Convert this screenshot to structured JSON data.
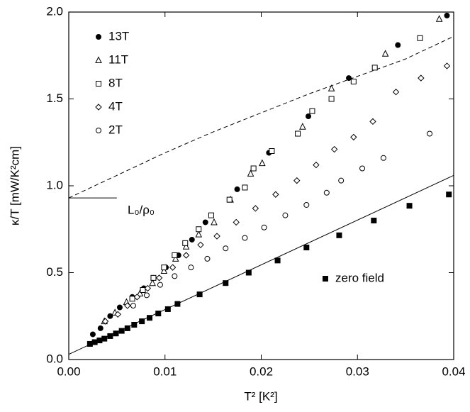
{
  "chart_data": {
    "type": "scatter",
    "xlabel": "T² [K²]",
    "ylabel": "κ/T [mW/K²cm]",
    "xlim": [
      0,
      0.04
    ],
    "ylim": [
      0,
      2.0
    ],
    "xticks": [
      {
        "value": 0,
        "label": "0.00"
      },
      0.01,
      0.02,
      0.03,
      0.04
    ],
    "yticks": [
      {
        "value": 0,
        "label": "0.0"
      },
      0.5,
      {
        "value": 1,
        "label": "1.0"
      },
      1.5,
      {
        "value": 2,
        "label": "2.0"
      }
    ],
    "series": [
      {
        "name": "13T",
        "color": "#000000",
        "marker": "circle-filled",
        "x": [
          0.0025,
          0.0033,
          0.0043,
          0.0053,
          0.0066,
          0.0078,
          0.0088,
          0.0101,
          0.0114,
          0.0128,
          0.0142,
          0.0175,
          0.0208,
          0.0249,
          0.0291,
          0.0342,
          0.0393
        ],
        "values": [
          0.145,
          0.18,
          0.25,
          0.3,
          0.36,
          0.41,
          0.47,
          0.53,
          0.6,
          0.69,
          0.79,
          0.98,
          1.19,
          1.4,
          1.62,
          1.81,
          1.98
        ]
      },
      {
        "name": "11T",
        "color": "#000000",
        "marker": "triangle-open",
        "x": [
          0.0037,
          0.0048,
          0.006,
          0.0074,
          0.0087,
          0.0099,
          0.0111,
          0.0122,
          0.0135,
          0.0151,
          0.0168,
          0.0189,
          0.0201,
          0.0243,
          0.0273,
          0.0329,
          0.0385
        ],
        "values": [
          0.22,
          0.27,
          0.33,
          0.38,
          0.44,
          0.51,
          0.58,
          0.65,
          0.72,
          0.79,
          0.92,
          1.07,
          1.13,
          1.34,
          1.56,
          1.76,
          1.96
        ]
      },
      {
        "name": "8T",
        "color": "#000000",
        "marker": "square-open",
        "x": [
          0.0066,
          0.0077,
          0.0088,
          0.0099,
          0.011,
          0.0121,
          0.0135,
          0.0148,
          0.0167,
          0.0183,
          0.0192,
          0.0211,
          0.0238,
          0.0253,
          0.0273,
          0.0296,
          0.0318,
          0.0365
        ],
        "values": [
          0.35,
          0.4,
          0.47,
          0.53,
          0.6,
          0.67,
          0.75,
          0.83,
          0.92,
          0.99,
          1.1,
          1.2,
          1.3,
          1.43,
          1.5,
          1.6,
          1.68,
          1.85
        ]
      },
      {
        "name": "4T",
        "color": "#000000",
        "marker": "diamond-open",
        "x": [
          0.0038,
          0.0051,
          0.0061,
          0.0071,
          0.0082,
          0.0094,
          0.0108,
          0.0122,
          0.0137,
          0.0154,
          0.0174,
          0.0194,
          0.0215,
          0.0237,
          0.0257,
          0.0276,
          0.0296,
          0.0316,
          0.034,
          0.0366,
          0.0393
        ],
        "values": [
          0.22,
          0.26,
          0.31,
          0.36,
          0.41,
          0.47,
          0.53,
          0.6,
          0.66,
          0.71,
          0.79,
          0.87,
          0.95,
          1.03,
          1.12,
          1.21,
          1.28,
          1.37,
          1.54,
          1.62,
          1.69
        ]
      },
      {
        "name": "2T",
        "color": "#000000",
        "marker": "circle-open",
        "x": [
          0.0067,
          0.0081,
          0.0095,
          0.011,
          0.0127,
          0.0144,
          0.0163,
          0.0183,
          0.0203,
          0.0225,
          0.0247,
          0.0268,
          0.0283,
          0.0305,
          0.0327,
          0.0375
        ],
        "values": [
          0.31,
          0.37,
          0.43,
          0.48,
          0.53,
          0.58,
          0.64,
          0.7,
          0.76,
          0.83,
          0.89,
          0.96,
          1.03,
          1.1,
          1.16,
          1.3
        ]
      },
      {
        "name": "zero field",
        "color": "#000000",
        "marker": "square-filled",
        "x": [
          0.0022,
          0.0027,
          0.0032,
          0.0037,
          0.0043,
          0.0049,
          0.0055,
          0.0061,
          0.0068,
          0.0076,
          0.0084,
          0.0093,
          0.0103,
          0.0113,
          0.0136,
          0.0163,
          0.0187,
          0.0217,
          0.0247,
          0.0281,
          0.0317,
          0.0354,
          0.0395
        ],
        "values": [
          0.09,
          0.1,
          0.11,
          0.12,
          0.135,
          0.15,
          0.165,
          0.18,
          0.2,
          0.22,
          0.24,
          0.265,
          0.29,
          0.32,
          0.375,
          0.44,
          0.5,
          0.57,
          0.645,
          0.715,
          0.8,
          0.885,
          0.95
        ]
      }
    ],
    "lines": [
      {
        "style": "dashed",
        "x": [
          0,
          0.005,
          0.01,
          0.015,
          0.02,
          0.025,
          0.03,
          0.035,
          0.04
        ],
        "values": [
          0.93,
          1.06,
          1.19,
          1.31,
          1.42,
          1.53,
          1.63,
          1.73,
          1.86
        ]
      },
      {
        "style": "solid",
        "x": [
          0,
          0.04
        ],
        "values": [
          0.03,
          1.06
        ]
      },
      {
        "style": "solid",
        "x": [
          0,
          0.005
        ],
        "values": [
          0.93,
          0.93
        ]
      }
    ],
    "annotation": "L₀/ρ₀"
  }
}
